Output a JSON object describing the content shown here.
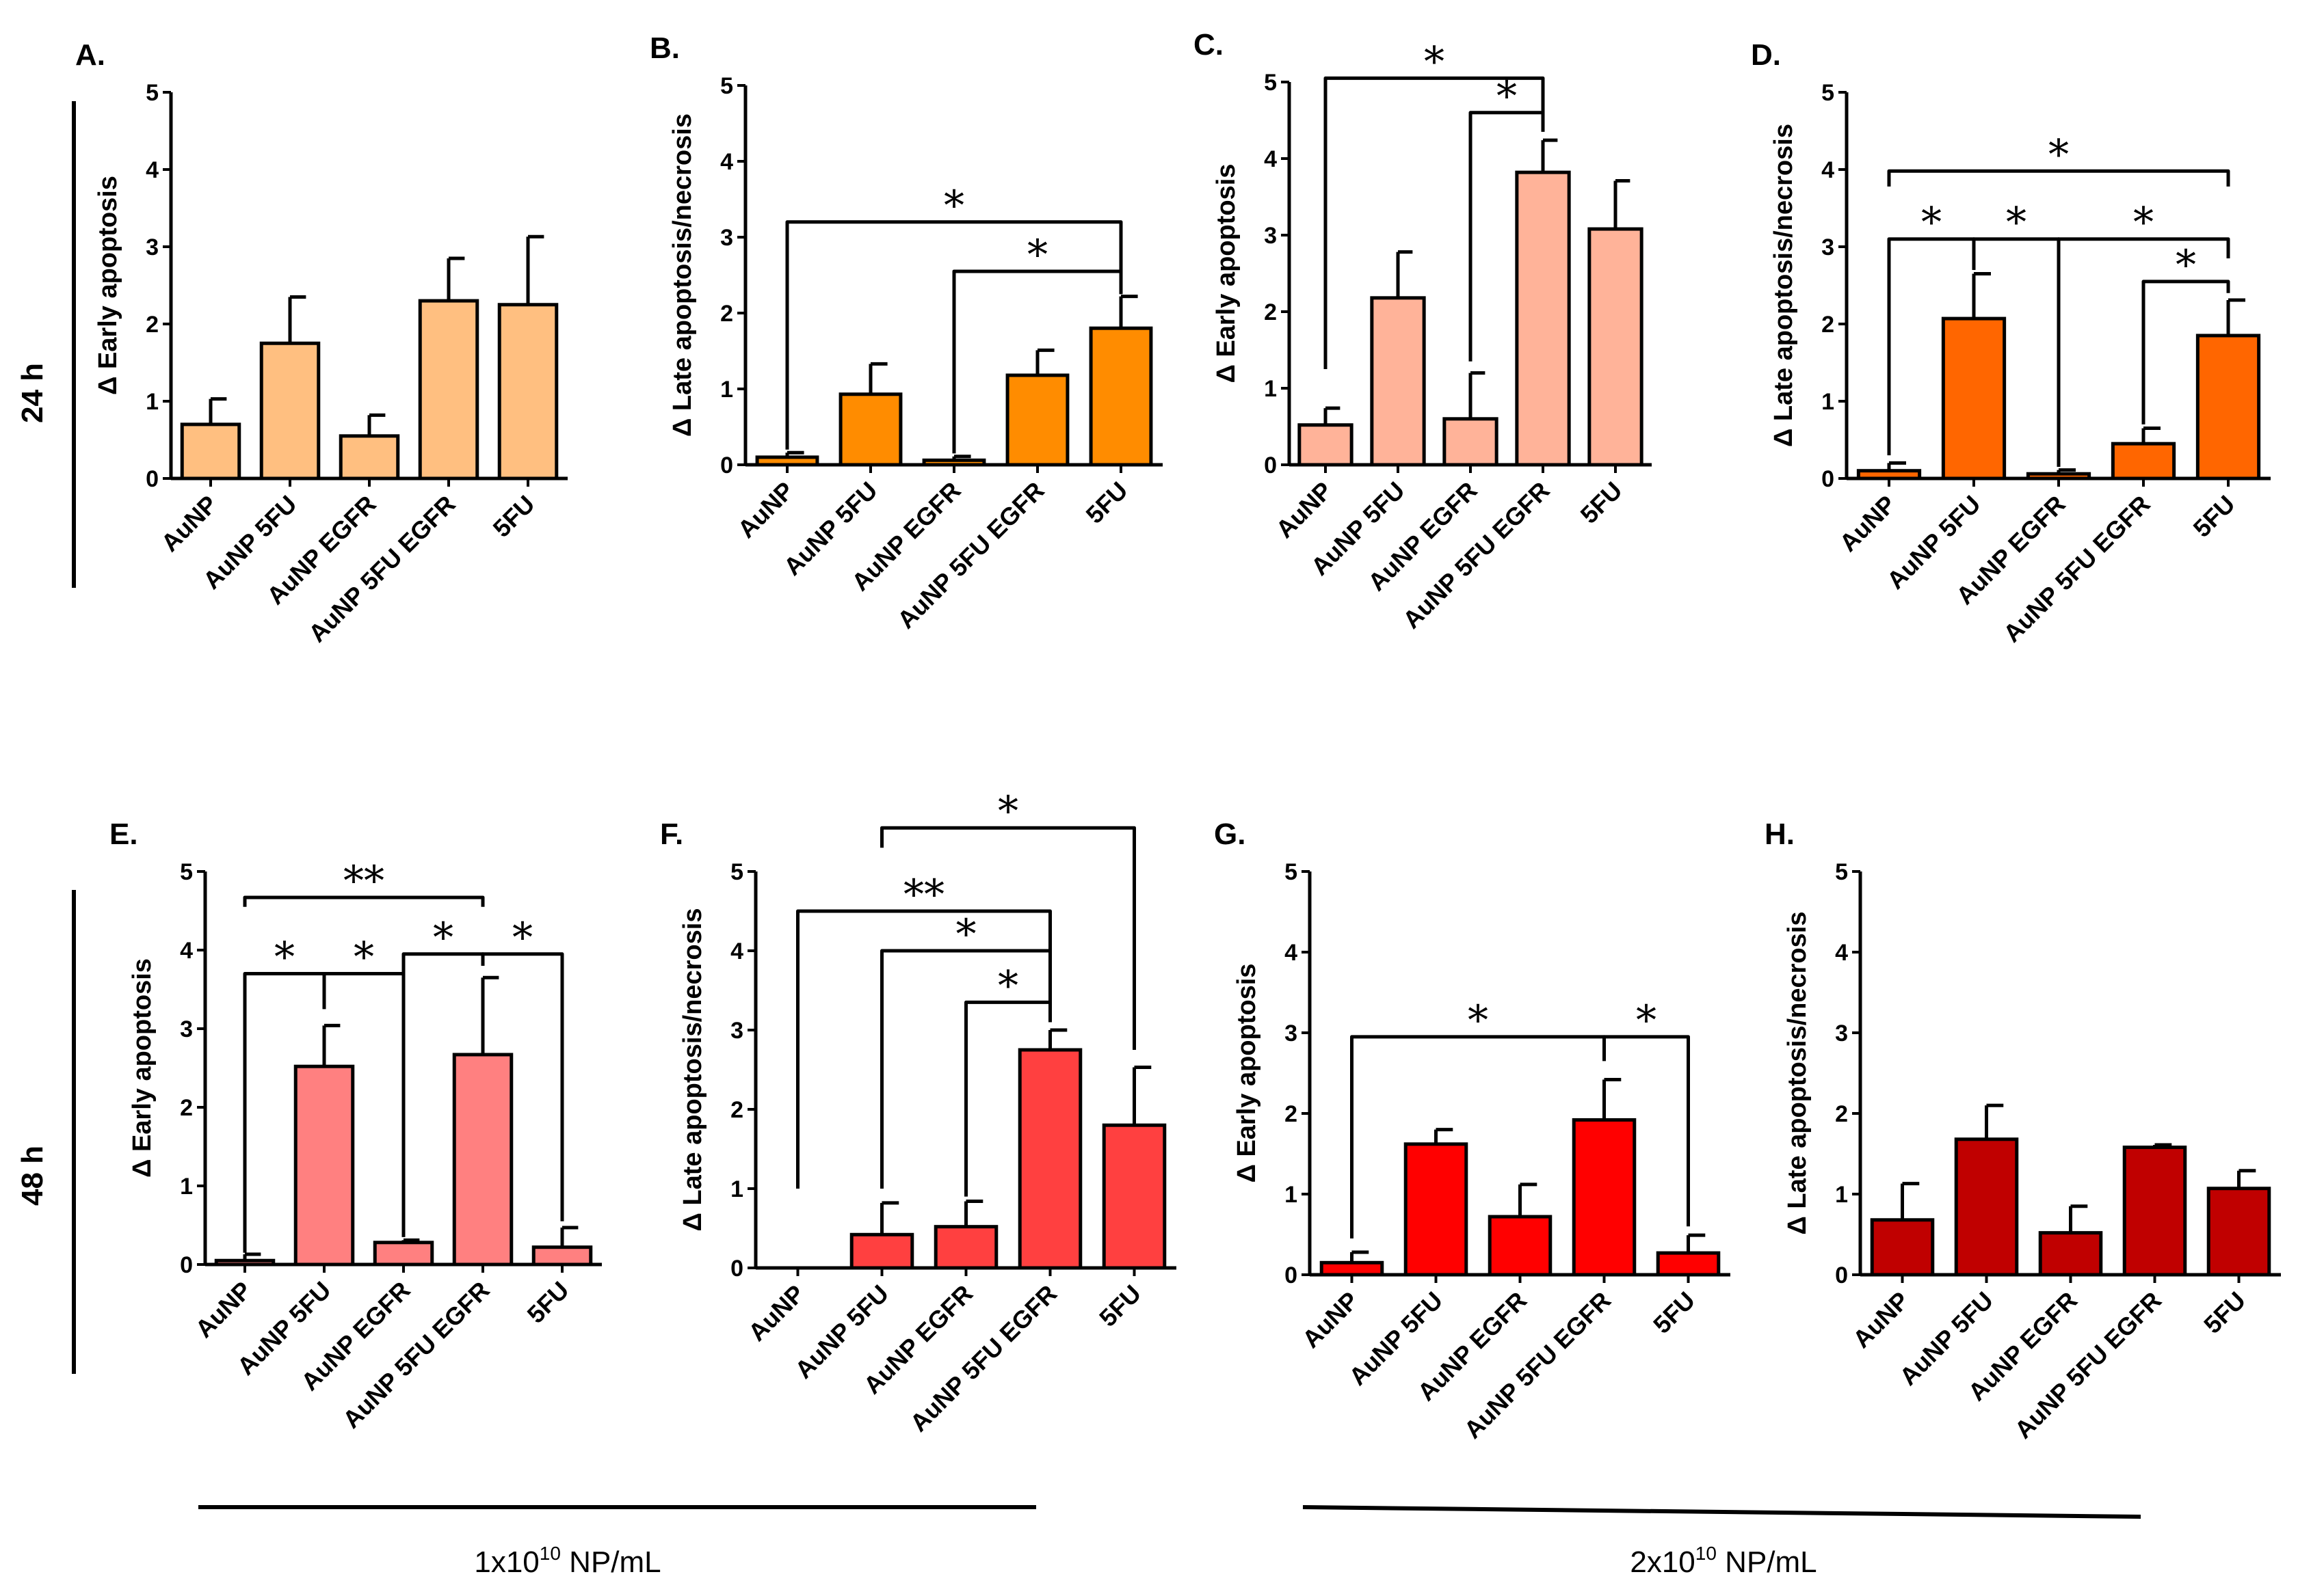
{
  "time_labels": [
    "24 h",
    "48 h"
  ],
  "concentration_labels": [
    {
      "base": "1x10",
      "exp": "10",
      "unit": " NP/mL"
    },
    {
      "base": "2x10",
      "exp": "10",
      "unit": " NP/mL"
    }
  ],
  "chart_data": [
    {
      "type": "bar",
      "panel": "A.",
      "ylabel": "Δ Early apoptosis",
      "ylim": [
        0,
        5
      ],
      "yticks": [
        "0",
        "1",
        "2",
        "3",
        "4",
        "5"
      ],
      "bar_color": "#FFBF80",
      "categories": [
        "AuNP",
        "AuNP 5FU",
        "AuNP EGFR",
        "AuNP 5FU EGFR",
        "5FU"
      ],
      "values": [
        0.7,
        1.75,
        0.55,
        2.3,
        2.25
      ],
      "errors": [
        0.33,
        0.6,
        0.27,
        0.55,
        0.88
      ],
      "significance": []
    },
    {
      "type": "bar",
      "panel": "B.",
      "ylabel": "Δ Late apoptosis/necrosis",
      "ylim": [
        0,
        5
      ],
      "yticks": [
        "0",
        "1",
        "2",
        "3",
        "4",
        "5"
      ],
      "bar_color": "#FF8C00",
      "categories": [
        "AuNP",
        "AuNP 5FU",
        "AuNP EGFR",
        "AuNP 5FU EGFR",
        "5FU"
      ],
      "values": [
        0.1,
        0.93,
        0.06,
        1.18,
        1.8
      ],
      "errors": [
        0.06,
        0.4,
        0.05,
        0.33,
        0.42
      ],
      "significance": [
        {
          "from": 0,
          "to": 4,
          "level": 3.2,
          "dropFrom": 0.2,
          "dropTo": 2.25,
          "label": "*"
        },
        {
          "from": 2,
          "to": 4,
          "level": 2.55,
          "dropFrom": 0.15,
          "dropTo": 2.25,
          "label": "*"
        }
      ]
    },
    {
      "type": "bar",
      "panel": "C.",
      "ylabel": "Δ Early apoptosis",
      "ylim": [
        0,
        5
      ],
      "yticks": [
        "0",
        "1",
        "2",
        "3",
        "4",
        "5"
      ],
      "bar_color": "#FFB399",
      "categories": [
        "AuNP",
        "AuNP 5FU",
        "AuNP EGFR",
        "AuNP 5FU EGFR",
        "5FU"
      ],
      "values": [
        0.52,
        2.18,
        0.6,
        3.82,
        3.08
      ],
      "errors": [
        0.22,
        0.6,
        0.6,
        0.42,
        0.63
      ],
      "significance": [
        {
          "from": 0,
          "to": 3,
          "level": 5.05,
          "dropFrom": 1.25,
          "dropTo": 4.35,
          "label": "*"
        },
        {
          "from": 2,
          "to": 3,
          "level": 4.6,
          "dropFrom": 1.35,
          "dropTo": 4.35,
          "label": "*"
        }
      ]
    },
    {
      "type": "bar",
      "panel": "D.",
      "ylabel": "Δ Late apoptosis/necrosis",
      "ylim": [
        0,
        5
      ],
      "yticks": [
        "0",
        "1",
        "2",
        "3",
        "4",
        "5"
      ],
      "bar_color": "#FF6600",
      "categories": [
        "AuNP",
        "AuNP 5FU",
        "AuNP EGFR",
        "AuNP 5FU EGFR",
        "5FU"
      ],
      "values": [
        0.1,
        2.07,
        0.06,
        0.45,
        1.85
      ],
      "errors": [
        0.1,
        0.58,
        0.05,
        0.2,
        0.46
      ],
      "significance": [
        {
          "from": 0,
          "to": 4,
          "level": 3.98,
          "dropFrom": 3.78,
          "dropTo": 3.78,
          "label": "*"
        },
        {
          "from": 0,
          "to": 1,
          "level": 3.1,
          "dropFrom": 0.3,
          "dropTo": 2.7,
          "label": "*"
        },
        {
          "from": 1,
          "to": 2,
          "level": 3.1,
          "dropFrom": 2.7,
          "dropTo": 0.15,
          "label": "*"
        },
        {
          "from": 2,
          "to": 4,
          "level": 3.1,
          "dropFrom": 0.15,
          "dropTo": 2.85,
          "label": "*"
        },
        {
          "from": 3,
          "to": 4,
          "level": 2.55,
          "dropFrom": 0.7,
          "dropTo": 2.4,
          "label": "*"
        }
      ]
    },
    {
      "type": "bar",
      "panel": "E.",
      "ylabel": "Δ Early apoptosis",
      "ylim": [
        0,
        5
      ],
      "yticks": [
        "0",
        "1",
        "2",
        "3",
        "4",
        "5"
      ],
      "bar_color": "#FF8080",
      "categories": [
        "AuNP",
        "AuNP 5FU",
        "AuNP EGFR",
        "AuNP 5FU EGFR",
        "5FU"
      ],
      "values": [
        0.05,
        2.52,
        0.28,
        2.67,
        0.22
      ],
      "errors": [
        0.08,
        0.52,
        0.03,
        0.98,
        0.25
      ],
      "significance": [
        {
          "from": 0,
          "to": 3,
          "level": 4.67,
          "dropFrom": 4.55,
          "dropTo": 4.55,
          "label": "**"
        },
        {
          "from": 0,
          "to": 1,
          "level": 3.7,
          "dropFrom": 0.15,
          "dropTo": 3.25,
          "label": "*"
        },
        {
          "from": 1,
          "to": 2,
          "level": 3.7,
          "dropFrom": 3.25,
          "dropTo": 0.35,
          "label": "*"
        },
        {
          "from": 2,
          "to": 3,
          "level": 3.95,
          "dropFrom": 0.35,
          "dropTo": 3.8,
          "label": "*"
        },
        {
          "from": 3,
          "to": 4,
          "level": 3.95,
          "dropFrom": 3.8,
          "dropTo": 0.55,
          "label": "*"
        }
      ]
    },
    {
      "type": "bar",
      "panel": "F.",
      "ylabel": "Δ Late apoptosis/necrosis",
      "ylim": [
        0,
        5
      ],
      "yticks": [
        "0",
        "1",
        "2",
        "3",
        "4",
        "5"
      ],
      "bar_color": "#FF4040",
      "categories": [
        "AuNP",
        "AuNP 5FU",
        "AuNP EGFR",
        "AuNP 5FU EGFR",
        "5FU"
      ],
      "values": [
        0.0,
        0.42,
        0.52,
        2.75,
        1.8
      ],
      "errors": [
        0.0,
        0.4,
        0.32,
        0.25,
        0.73
      ],
      "significance": [
        {
          "from": 1,
          "to": 4,
          "level": 5.55,
          "dropFrom": 5.3,
          "dropTo": 2.75,
          "label": "*"
        },
        {
          "from": 0,
          "to": 3,
          "level": 4.5,
          "dropFrom": 1.0,
          "dropTo": 3.1,
          "label": "**"
        },
        {
          "from": 1,
          "to": 3,
          "level": 4.0,
          "dropFrom": 1.0,
          "dropTo": 3.1,
          "label": "*"
        },
        {
          "from": 2,
          "to": 3,
          "level": 3.35,
          "dropFrom": 0.9,
          "dropTo": 3.1,
          "label": "*"
        }
      ]
    },
    {
      "type": "bar",
      "panel": "G.",
      "ylabel": "Δ Early apoptosis",
      "ylim": [
        0,
        5
      ],
      "yticks": [
        "0",
        "1",
        "2",
        "3",
        "4",
        "5"
      ],
      "bar_color": "#FF0000",
      "categories": [
        "AuNP",
        "AuNP 5FU",
        "AuNP EGFR",
        "AuNP 5FU EGFR",
        "5FU"
      ],
      "values": [
        0.15,
        1.62,
        0.72,
        1.92,
        0.27
      ],
      "errors": [
        0.13,
        0.18,
        0.4,
        0.5,
        0.22
      ],
      "significance": [
        {
          "from": 0,
          "to": 3,
          "level": 2.95,
          "dropFrom": 0.45,
          "dropTo": 2.65,
          "label": "*"
        },
        {
          "from": 3,
          "to": 4,
          "level": 2.95,
          "dropFrom": 2.65,
          "dropTo": 0.6,
          "label": "*"
        }
      ]
    },
    {
      "type": "bar",
      "panel": "H.",
      "ylabel": "Δ Late apoptosis/necrosis",
      "ylim": [
        0,
        5
      ],
      "yticks": [
        "0",
        "1",
        "2",
        "3",
        "4",
        "5"
      ],
      "bar_color": "#C00000",
      "categories": [
        "AuNP",
        "AuNP 5FU",
        "AuNP EGFR",
        "AuNP 5FU EGFR",
        "5FU"
      ],
      "values": [
        0.68,
        1.68,
        0.52,
        1.58,
        1.07
      ],
      "errors": [
        0.45,
        0.42,
        0.33,
        0.03,
        0.22
      ],
      "significance": []
    }
  ]
}
